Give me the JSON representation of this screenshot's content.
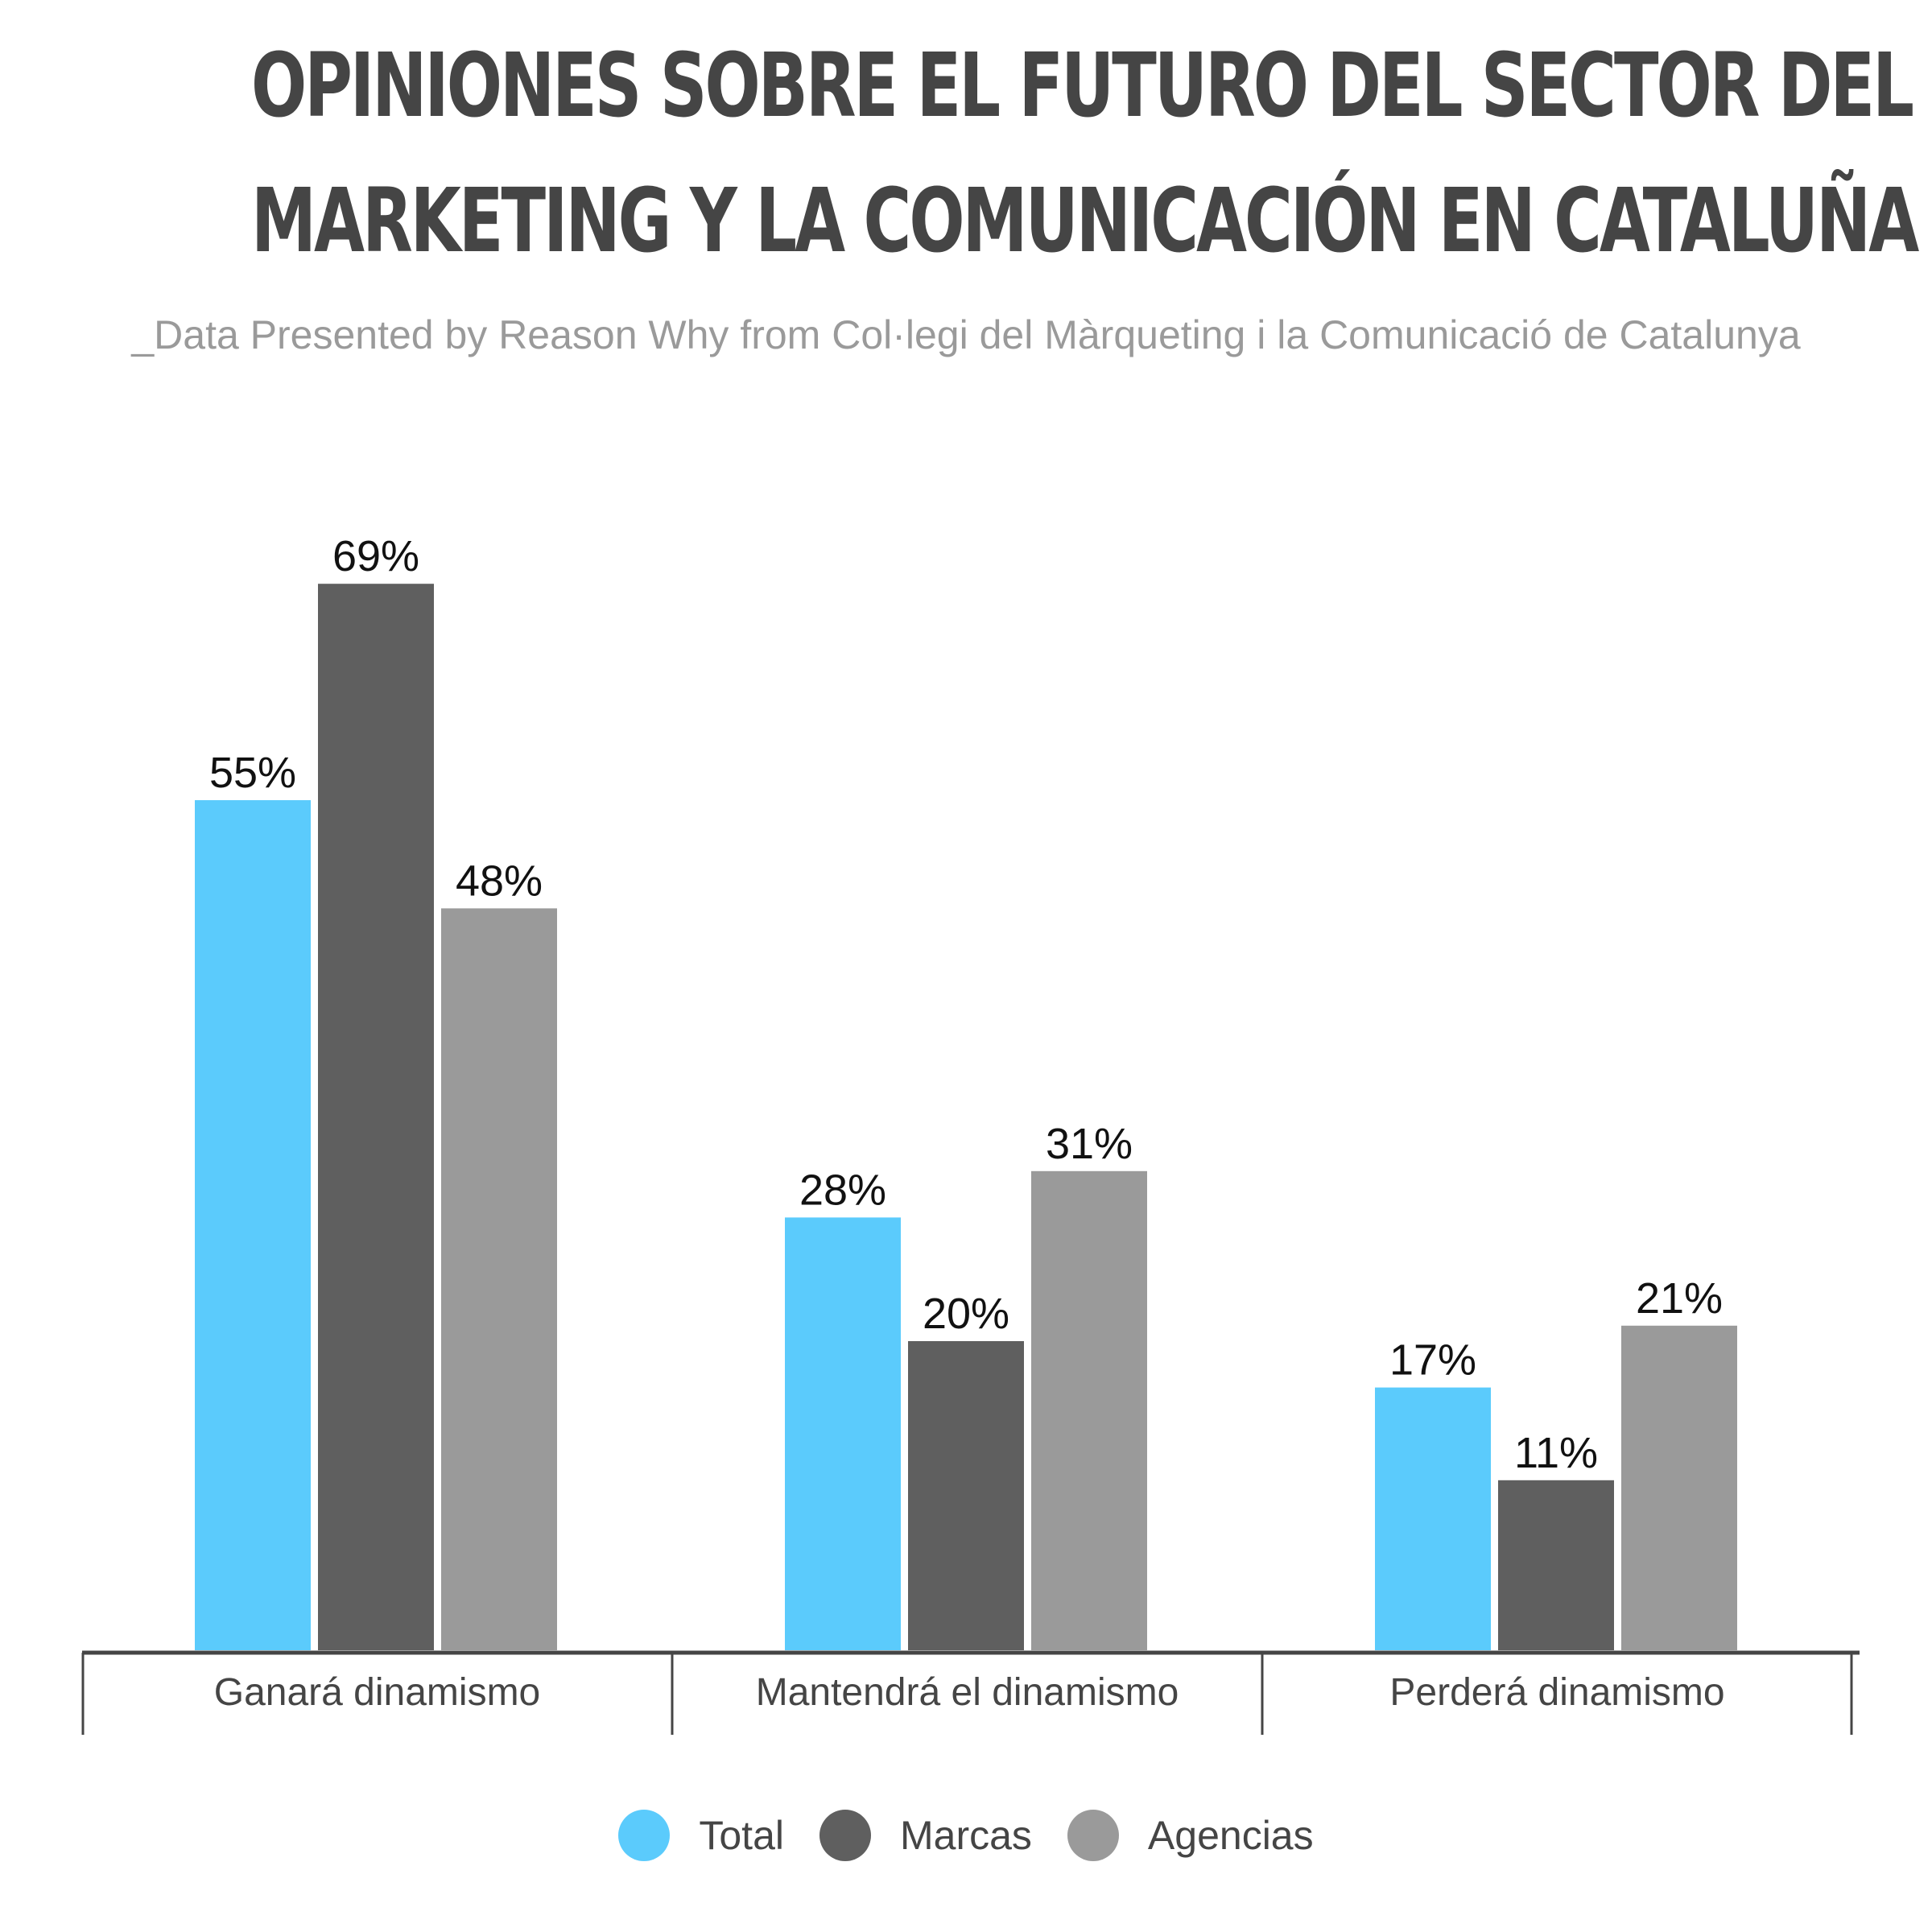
{
  "chart_data": {
    "type": "bar",
    "title_lines": [
      "OPINIONES SOBRE EL FUTURO DEL SECTOR DEL",
      "MARKETING Y LA COMUNICACIÓN EN CATALUÑA"
    ],
    "subtitle": "_Data Presented by Reason Why from Col·legi del Màrqueting i la Comunicació de Catalunya",
    "categories": [
      "Ganará dinamismo",
      "Mantendrá el dinamismo",
      "Perderá dinamismo"
    ],
    "series": [
      {
        "name": "Total",
        "values": [
          55,
          28,
          17
        ],
        "color": "#5bcbfc"
      },
      {
        "name": "Marcas",
        "values": [
          69,
          20,
          11
        ],
        "color": "#5f5f5f"
      },
      {
        "name": "Agencias",
        "values": [
          48,
          31,
          21
        ],
        "color": "#9a9a9a"
      }
    ],
    "value_suffix": "%",
    "ylim": [
      0,
      100
    ],
    "grid": false,
    "legend_position": "bottom-center",
    "axis_color": "#454545"
  }
}
